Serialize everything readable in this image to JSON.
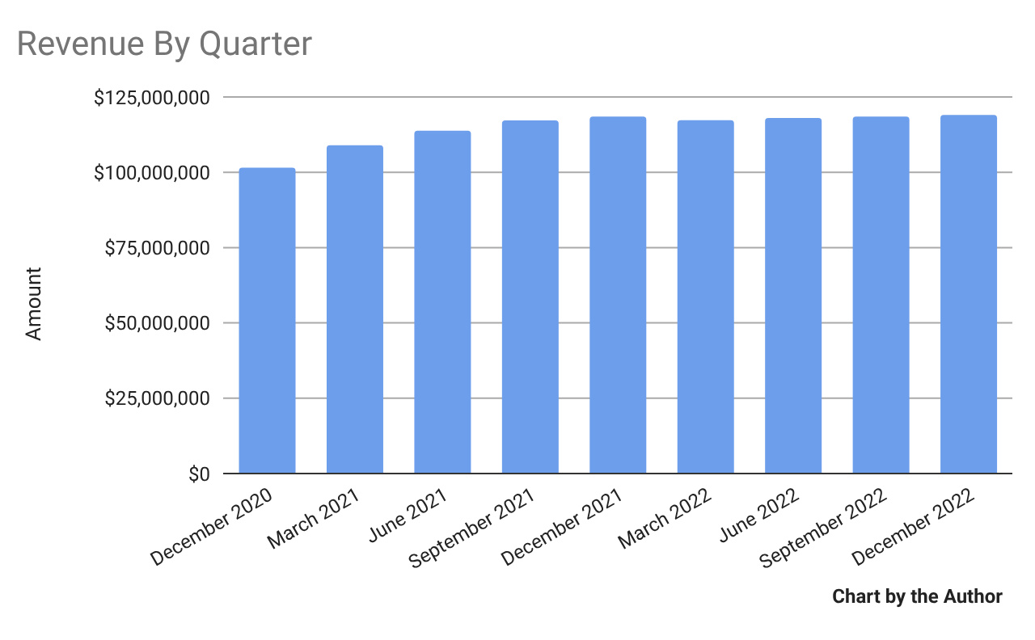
{
  "chart_data": {
    "type": "bar",
    "title": "Revenue By Quarter",
    "ylabel": "Amount",
    "annotations": [
      "Chart by the Author"
    ],
    "categories": [
      "December 2020",
      "March 2021",
      "June 2021",
      "September 2021",
      "December 2021",
      "March 2022",
      "June 2022",
      "September 2022",
      "December 2022"
    ],
    "series": [
      {
        "color": "#6d9eeb",
        "values": [
          101500000,
          109000000,
          113800000,
          117200000,
          118500000,
          117300000,
          118000000,
          118500000,
          119000000
        ]
      }
    ],
    "ylim": [
      0,
      125000000
    ],
    "yticks": [
      {
        "value": 0,
        "label": "$0"
      },
      {
        "value": 25000000,
        "label": "$25,000,000"
      },
      {
        "value": 50000000,
        "label": "$50,000,000"
      },
      {
        "value": 75000000,
        "label": "$75,000,000"
      },
      {
        "value": 100000000,
        "label": "$100,000,000"
      },
      {
        "value": 125000000,
        "label": "$125,000,000"
      }
    ],
    "grid": "y",
    "legend": false
  }
}
